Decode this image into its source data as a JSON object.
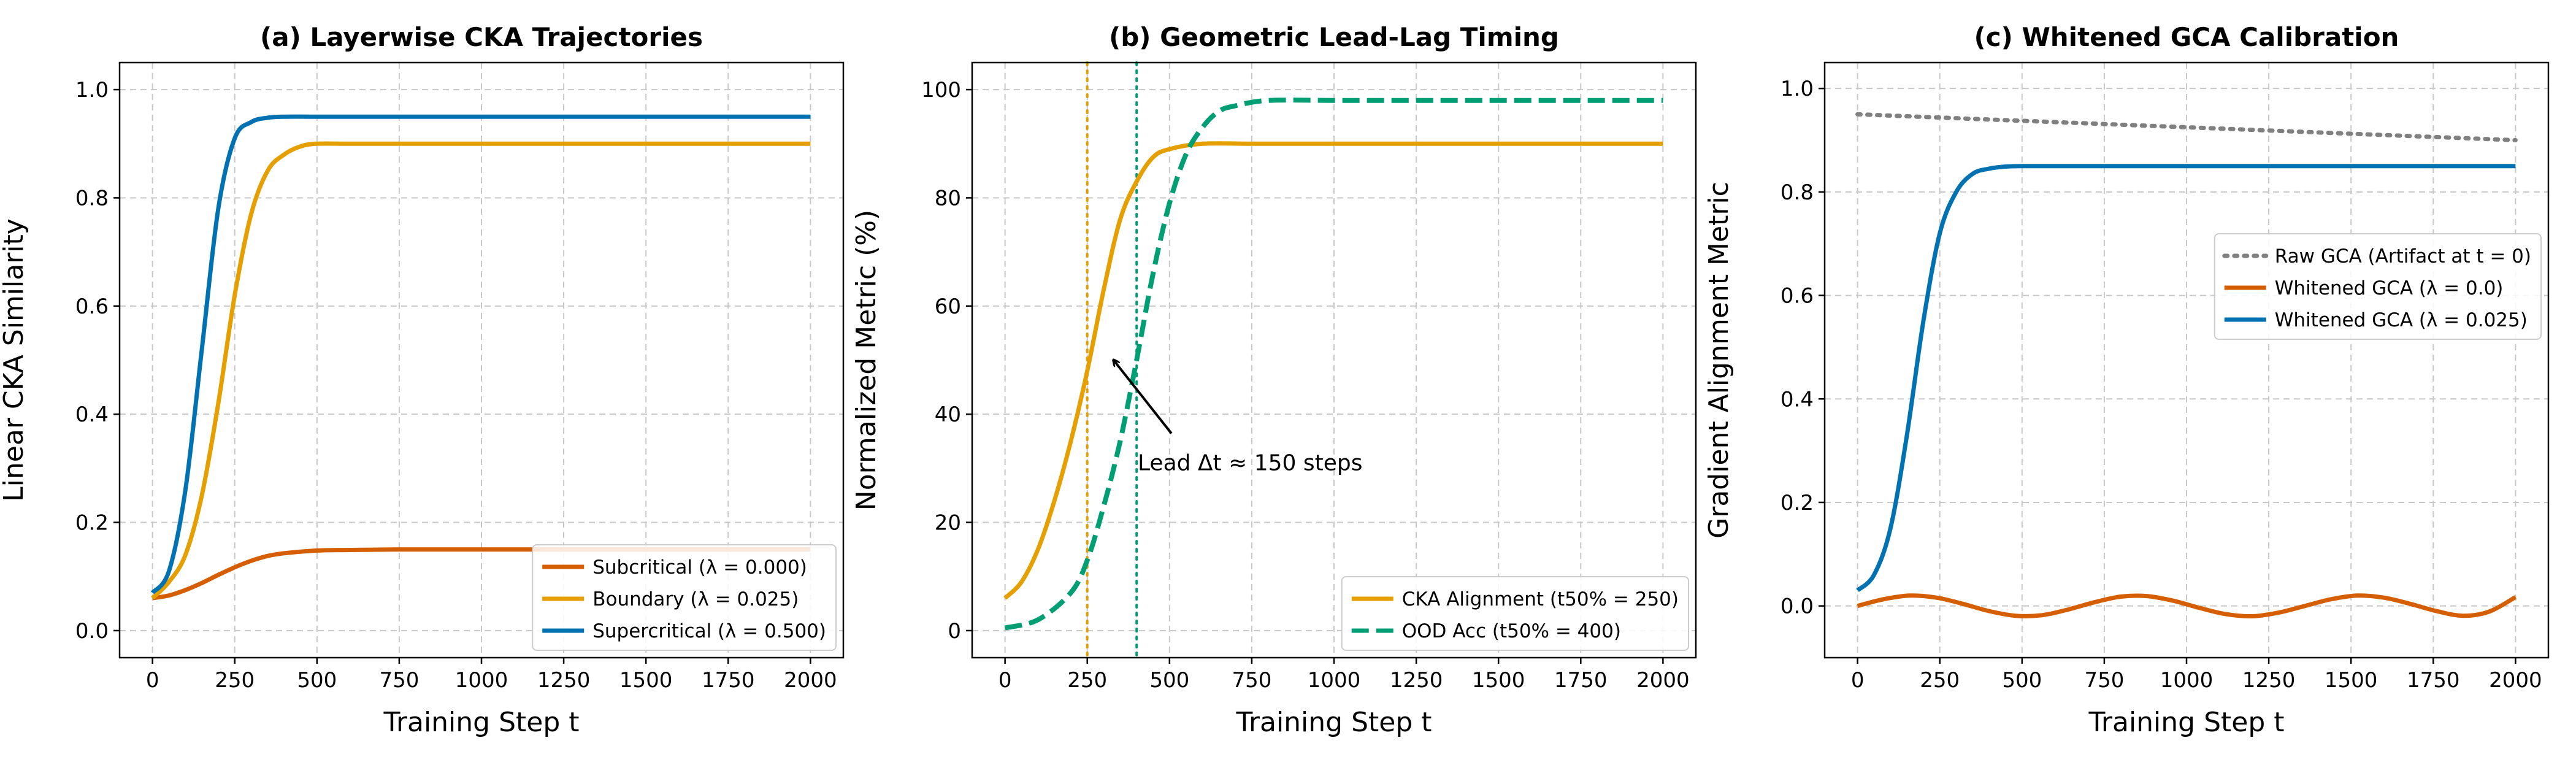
{
  "chart_data": [
    {
      "type": "line",
      "title": "(a) Layerwise CKA Trajectories",
      "xlabel": "Training Step t",
      "ylabel": "Linear CKA Similarity",
      "xlim": [
        -100,
        2100
      ],
      "ylim": [
        -0.05,
        1.05
      ],
      "xticks": [
        0,
        250,
        500,
        750,
        1000,
        1250,
        1500,
        1750,
        2000
      ],
      "xtick_labels": [
        "0",
        "250",
        "500",
        "750",
        "1000",
        "1250",
        "1500",
        "1750",
        "2000"
      ],
      "yticks": [
        0.0,
        0.2,
        0.4,
        0.6,
        0.8,
        1.0
      ],
      "ytick_labels": [
        "0.0",
        "0.2",
        "0.4",
        "0.6",
        "0.8",
        "1.0"
      ],
      "grid": true,
      "legend_position": "lower-right",
      "series": [
        {
          "name": "Subcritical (λ = 0.000)",
          "color": "#d55e00",
          "style": "solid",
          "x": [
            0,
            50,
            100,
            150,
            200,
            250,
            300,
            350,
            400,
            500,
            600,
            750,
            1000,
            1250,
            1500,
            1750,
            2000
          ],
          "y": [
            0.06,
            0.065,
            0.075,
            0.088,
            0.103,
            0.117,
            0.129,
            0.138,
            0.143,
            0.148,
            0.149,
            0.15,
            0.15,
            0.15,
            0.15,
            0.15,
            0.15
          ]
        },
        {
          "name": "Boundary (λ = 0.025)",
          "color": "#e69f00",
          "style": "solid",
          "x": [
            0,
            50,
            100,
            150,
            200,
            250,
            300,
            350,
            400,
            450,
            500,
            600,
            750,
            1000,
            1250,
            1500,
            1750,
            2000
          ],
          "y": [
            0.06,
            0.09,
            0.14,
            0.25,
            0.42,
            0.62,
            0.77,
            0.85,
            0.88,
            0.895,
            0.9,
            0.9,
            0.9,
            0.9,
            0.9,
            0.9,
            0.9,
            0.9
          ]
        },
        {
          "name": "Supercritical (λ = 0.500)",
          "color": "#0072b2",
          "style": "solid",
          "x": [
            0,
            50,
            100,
            150,
            200,
            250,
            300,
            350,
            400,
            500,
            750,
            1000,
            1250,
            1500,
            1750,
            2000
          ],
          "y": [
            0.07,
            0.11,
            0.26,
            0.52,
            0.78,
            0.91,
            0.94,
            0.948,
            0.95,
            0.95,
            0.95,
            0.95,
            0.95,
            0.95,
            0.95,
            0.95
          ]
        }
      ]
    },
    {
      "type": "line",
      "title": "(b) Geometric Lead-Lag Timing",
      "xlabel": "Training Step t",
      "ylabel": "Normalized Metric (%)",
      "xlim": [
        -100,
        2100
      ],
      "ylim": [
        -5,
        105
      ],
      "xticks": [
        0,
        250,
        500,
        750,
        1000,
        1250,
        1500,
        1750,
        2000
      ],
      "xtick_labels": [
        "0",
        "250",
        "500",
        "750",
        "1000",
        "1250",
        "1500",
        "1750",
        "2000"
      ],
      "yticks": [
        0,
        20,
        40,
        60,
        80,
        100
      ],
      "ytick_labels": [
        "0",
        "20",
        "40",
        "60",
        "80",
        "100"
      ],
      "grid": true,
      "legend_position": "lower-right",
      "series": [
        {
          "name": "CKA Alignment (t50% = 250)",
          "color": "#e69f00",
          "style": "solid",
          "x": [
            0,
            50,
            100,
            150,
            200,
            250,
            300,
            350,
            400,
            450,
            500,
            600,
            750,
            1000,
            1250,
            1500,
            1750,
            2000
          ],
          "y": [
            6.0,
            9.0,
            15.0,
            24.0,
            35.0,
            48.0,
            63.0,
            76.0,
            83.0,
            87.5,
            89.0,
            90.0,
            90.0,
            90.0,
            90.0,
            90.0,
            90.0,
            90.0
          ]
        },
        {
          "name": "OOD Acc (t50% = 400)",
          "color": "#009e73",
          "style": "dashed",
          "x": [
            0,
            100,
            200,
            250,
            300,
            350,
            400,
            450,
            500,
            550,
            600,
            650,
            700,
            800,
            1000,
            1250,
            1500,
            1750,
            2000
          ],
          "y": [
            0.5,
            2.0,
            7.0,
            13.0,
            23.0,
            35.0,
            50.0,
            66.0,
            79.0,
            88.0,
            93.0,
            96.0,
            97.0,
            98.0,
            98.0,
            98.0,
            98.0,
            98.0,
            98.0
          ]
        }
      ],
      "vlines": [
        {
          "x": 250,
          "color": "#e69f00",
          "style": "dotted"
        },
        {
          "x": 400,
          "color": "#009e73",
          "style": "dotted"
        }
      ],
      "annotation": {
        "text": "Lead Δt ≈ 150 steps",
        "text_x": 450,
        "text_y": 31,
        "arrow_to_x": 330,
        "arrow_to_y": 50
      }
    },
    {
      "type": "line",
      "title": "(c) Whitened GCA Calibration",
      "xlabel": "Training Step t",
      "ylabel": "Gradient Alignment Metric",
      "xlim": [
        -100,
        2100
      ],
      "ylim": [
        -0.1,
        1.05
      ],
      "xticks": [
        0,
        250,
        500,
        750,
        1000,
        1250,
        1500,
        1750,
        2000
      ],
      "xtick_labels": [
        "0",
        "250",
        "500",
        "750",
        "1000",
        "1250",
        "1500",
        "1750",
        "2000"
      ],
      "yticks": [
        0.0,
        0.2,
        0.4,
        0.6,
        0.8,
        1.0
      ],
      "ytick_labels": [
        "0.0",
        "0.2",
        "0.4",
        "0.6",
        "0.8",
        "1.0"
      ],
      "grid": true,
      "legend_position": "center-right",
      "series": [
        {
          "name": "Raw GCA (Artifact at t = 0)",
          "color": "#808080",
          "style": "dotted",
          "x": [
            0,
            2000
          ],
          "y": [
            0.95,
            0.9
          ]
        },
        {
          "name": "Whitened GCA (λ = 0.0)",
          "color": "#d55e00",
          "style": "solid",
          "x": [
            0,
            80,
            160,
            240,
            320,
            400,
            480,
            560,
            640,
            720,
            800,
            880,
            960,
            1040,
            1120,
            1200,
            1280,
            1360,
            1440,
            1520,
            1600,
            1680,
            1760,
            1840,
            1920,
            2000
          ],
          "y": [
            0.0,
            0.013,
            0.02,
            0.016,
            0.004,
            -0.01,
            -0.019,
            -0.018,
            -0.007,
            0.007,
            0.018,
            0.019,
            0.01,
            -0.004,
            -0.016,
            -0.02,
            -0.013,
            0.0,
            0.013,
            0.02,
            0.016,
            0.004,
            -0.01,
            -0.019,
            -0.011,
            0.017
          ]
        },
        {
          "name": "Whitened GCA (λ = 0.025)",
          "color": "#0072b2",
          "style": "solid",
          "x": [
            0,
            50,
            100,
            150,
            200,
            250,
            300,
            350,
            400,
            450,
            500,
            600,
            750,
            1000,
            1250,
            1500,
            1750,
            2000
          ],
          "y": [
            0.03,
            0.06,
            0.15,
            0.33,
            0.55,
            0.72,
            0.8,
            0.835,
            0.845,
            0.849,
            0.85,
            0.85,
            0.85,
            0.85,
            0.85,
            0.85,
            0.85,
            0.85
          ]
        }
      ]
    }
  ]
}
